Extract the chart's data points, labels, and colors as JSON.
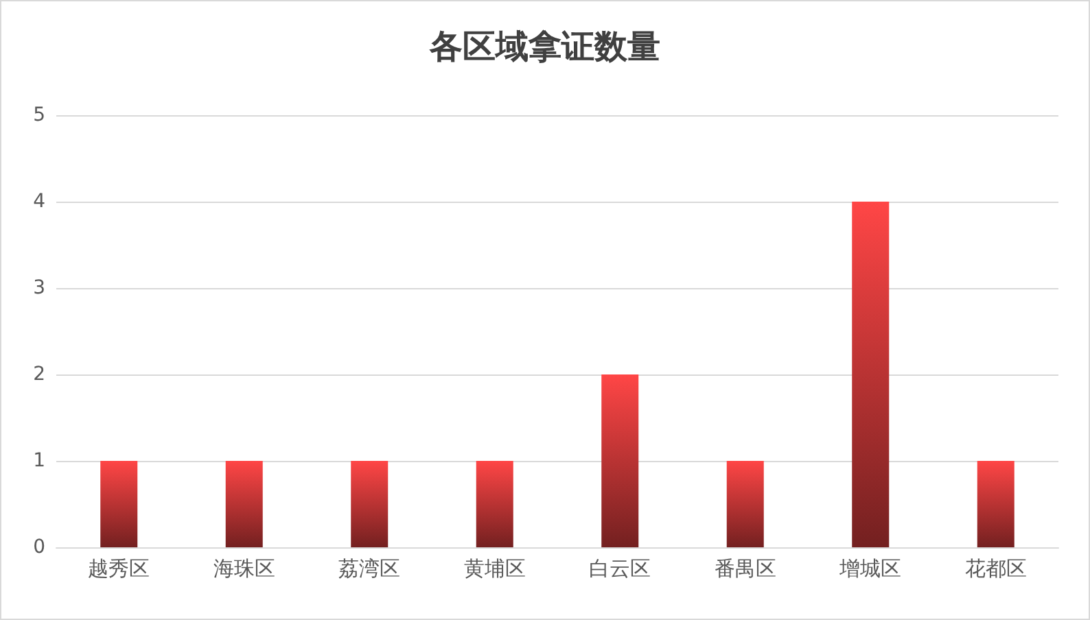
{
  "chart_data": {
    "type": "bar",
    "title": "各区域拿证数量",
    "categories": [
      "越秀区",
      "海珠区",
      "荔湾区",
      "黄埔区",
      "白云区",
      "番禺区",
      "增城区",
      "花都区"
    ],
    "values": [
      1,
      1,
      1,
      1,
      2,
      1,
      4,
      1
    ],
    "color": "#ff4646",
    "ylim": [
      0,
      5
    ],
    "yticks": [
      0,
      1,
      2,
      3,
      4,
      5
    ],
    "grid": "y"
  }
}
